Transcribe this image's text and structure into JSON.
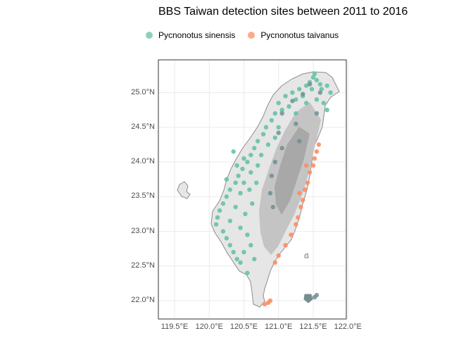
{
  "title": "BBS Taiwan detection sites between 2011 to 2016",
  "legend": [
    {
      "label": "Pycnonotus sinensis",
      "color": "#66C2A5"
    },
    {
      "label": "Pycnonotus taivanus",
      "color": "#FC8D62"
    }
  ],
  "axes": {
    "y_ticks": [
      "25.0°N",
      "24.5°N",
      "24.0°N",
      "23.5°N",
      "23.0°N",
      "22.5°N",
      "22.0°N"
    ],
    "x_ticks": [
      "119.5°E",
      "120.0°E",
      "120.5°E",
      "121.0°E",
      "121.5°E",
      "122.0°E"
    ]
  },
  "chart_data": {
    "type": "scatter",
    "title": "BBS Taiwan detection sites between 2011 to 2016",
    "xlim": [
      119.0,
      122.15
    ],
    "ylim": [
      21.85,
      25.45
    ],
    "grid": true,
    "legend_position": "top",
    "basemap": "Taiwan island outline with grey elevation shading",
    "series": [
      {
        "name": "Pycnonotus sinensis",
        "color": "#66C2A5",
        "points": [
          [
            121.5,
            25.22
          ],
          [
            121.55,
            25.18
          ],
          [
            121.6,
            25.12
          ],
          [
            121.45,
            25.15
          ],
          [
            121.62,
            25.05
          ],
          [
            121.52,
            25.27
          ],
          [
            121.4,
            25.1
          ],
          [
            121.3,
            25.05
          ],
          [
            121.2,
            25.0
          ],
          [
            121.1,
            24.95
          ],
          [
            121.7,
            25.1
          ],
          [
            121.75,
            25.0
          ],
          [
            121.55,
            24.9
          ],
          [
            121.4,
            24.85
          ],
          [
            121.0,
            24.85
          ],
          [
            121.05,
            24.75
          ],
          [
            120.95,
            24.7
          ],
          [
            120.9,
            24.6
          ],
          [
            120.82,
            24.5
          ],
          [
            120.78,
            24.4
          ],
          [
            120.7,
            24.3
          ],
          [
            120.65,
            24.2
          ],
          [
            120.6,
            24.1
          ],
          [
            120.55,
            24.0
          ],
          [
            120.48,
            23.9
          ],
          [
            120.42,
            23.8
          ],
          [
            120.38,
            23.7
          ],
          [
            120.3,
            23.6
          ],
          [
            120.25,
            23.5
          ],
          [
            120.2,
            23.4
          ],
          [
            120.15,
            23.3
          ],
          [
            120.12,
            23.2
          ],
          [
            120.1,
            23.1
          ],
          [
            120.2,
            23.0
          ],
          [
            120.25,
            22.9
          ],
          [
            120.3,
            22.8
          ],
          [
            120.35,
            22.7
          ],
          [
            120.4,
            22.6
          ],
          [
            120.45,
            22.55
          ],
          [
            120.55,
            22.4
          ],
          [
            120.5,
            24.05
          ],
          [
            120.6,
            23.85
          ],
          [
            120.5,
            23.7
          ],
          [
            120.45,
            23.55
          ],
          [
            120.38,
            23.35
          ],
          [
            120.3,
            23.15
          ],
          [
            120.45,
            23.05
          ],
          [
            120.55,
            22.95
          ],
          [
            120.6,
            22.8
          ],
          [
            120.5,
            22.7
          ],
          [
            120.7,
            23.95
          ],
          [
            120.75,
            24.1
          ],
          [
            120.85,
            24.25
          ],
          [
            120.95,
            24.35
          ],
          [
            121.0,
            24.5
          ],
          [
            121.15,
            24.8
          ],
          [
            121.25,
            24.9
          ],
          [
            121.35,
            24.95
          ],
          [
            120.62,
            23.4
          ],
          [
            120.52,
            23.25
          ],
          [
            121.48,
            25.05
          ],
          [
            121.65,
            24.85
          ],
          [
            121.25,
            24.7
          ],
          [
            120.35,
            24.15
          ],
          [
            120.4,
            23.95
          ],
          [
            120.25,
            23.75
          ],
          [
            120.65,
            22.6
          ],
          [
            120.58,
            23.6
          ],
          [
            120.68,
            23.7
          ],
          [
            121.7,
            24.75
          ]
        ]
      },
      {
        "name": "Pycnonotus taivanus",
        "color": "#FC8D62",
        "points": [
          [
            121.55,
            24.15
          ],
          [
            121.52,
            24.05
          ],
          [
            121.5,
            23.95
          ],
          [
            121.45,
            23.85
          ],
          [
            121.42,
            23.7
          ],
          [
            121.38,
            23.6
          ],
          [
            121.35,
            23.45
          ],
          [
            121.32,
            23.35
          ],
          [
            121.28,
            23.2
          ],
          [
            121.25,
            23.1
          ],
          [
            121.18,
            22.95
          ],
          [
            121.1,
            22.8
          ],
          [
            121.0,
            22.65
          ],
          [
            120.95,
            22.55
          ],
          [
            120.85,
            21.97
          ],
          [
            120.8,
            21.95
          ],
          [
            121.58,
            24.25
          ],
          [
            121.4,
            23.95
          ],
          [
            121.3,
            23.55
          ],
          [
            120.88,
            22.0
          ]
        ]
      },
      {
        "name": "",
        "color": "#708E95",
        "points": [
          [
            121.45,
            25.12
          ],
          [
            121.35,
            24.98
          ],
          [
            121.2,
            24.88
          ],
          [
            121.05,
            24.7
          ],
          [
            121.0,
            24.42
          ],
          [
            121.05,
            24.2
          ],
          [
            120.95,
            24.0
          ],
          [
            120.9,
            23.8
          ],
          [
            120.88,
            23.55
          ],
          [
            120.92,
            23.35
          ],
          [
            121.25,
            24.55
          ],
          [
            121.3,
            24.3
          ],
          [
            121.55,
            24.7
          ],
          [
            121.6,
            25.0
          ],
          [
            121.52,
            22.05
          ],
          [
            121.55,
            22.08
          ]
        ]
      }
    ]
  }
}
